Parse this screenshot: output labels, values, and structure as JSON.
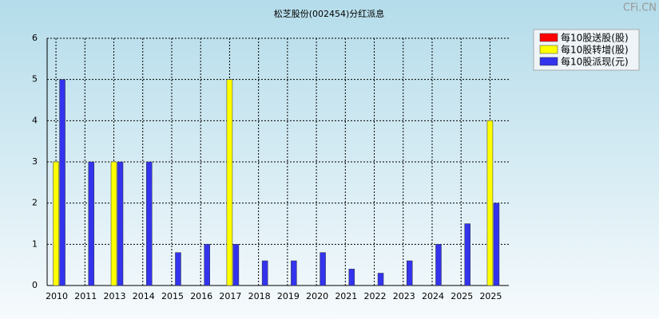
{
  "chart_data": {
    "type": "bar",
    "title": "松芝股份(002454)分红派息",
    "watermark": "CFi.CN",
    "categories": [
      "2010",
      "2011",
      "2013",
      "2014",
      "2015",
      "2016",
      "2017",
      "2018",
      "2019",
      "2020",
      "2021",
      "2022",
      "2023",
      "2024",
      "2025",
      "2025"
    ],
    "series": [
      {
        "name": "每10股送股(股)",
        "color": "#ff0000",
        "values": [
          0,
          0,
          0,
          0,
          0,
          0,
          0,
          0,
          0,
          0,
          0,
          0,
          0,
          0,
          0,
          0
        ]
      },
      {
        "name": "每10股转增(股)",
        "color": "#ffff00",
        "values": [
          3,
          0,
          3,
          0,
          0,
          0,
          5,
          0,
          0,
          0,
          0,
          0,
          0,
          0,
          0,
          4
        ]
      },
      {
        "name": "每10股派现(元)",
        "color": "#3333ee",
        "values": [
          5,
          3,
          3,
          3,
          0.8,
          1,
          1,
          0.6,
          0.6,
          0.8,
          0.4,
          0.3,
          0.6,
          1,
          1.5,
          2
        ]
      }
    ],
    "ylim": [
      0,
      6
    ],
    "yticks": [
      0,
      1,
      2,
      3,
      4,
      5,
      6
    ],
    "grid": true,
    "legend": "top-right"
  }
}
